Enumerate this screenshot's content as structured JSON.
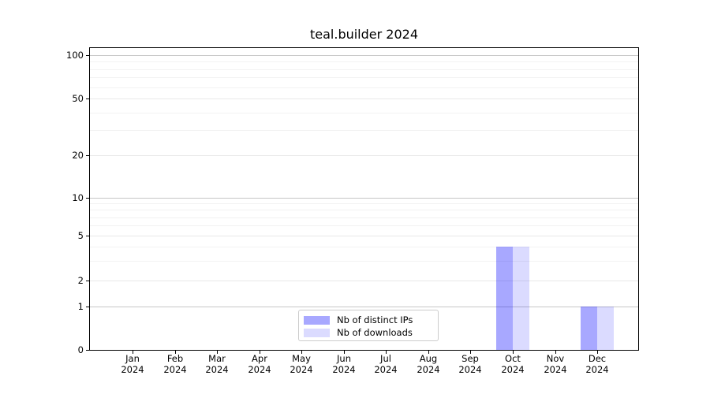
{
  "chart_data": {
    "type": "bar",
    "title": "teal.builder 2024",
    "categories": [
      "Jan",
      "Feb",
      "Mar",
      "Apr",
      "May",
      "Jun",
      "Jul",
      "Aug",
      "Sep",
      "Oct",
      "Nov",
      "Dec"
    ],
    "category_year": "2024",
    "series": [
      {
        "name": "Nb of distinct IPs",
        "color": "rgba(0,0,255,0.34)",
        "values": [
          0,
          0,
          0,
          0,
          0,
          0,
          0,
          0,
          0,
          4,
          0,
          1
        ]
      },
      {
        "name": "Nb of downloads",
        "color": "rgba(0,0,255,0.14)",
        "values": [
          0,
          0,
          0,
          0,
          0,
          0,
          0,
          0,
          0,
          4,
          0,
          1
        ]
      }
    ],
    "xlabel": "",
    "ylabel": "",
    "y_axis": {
      "scale": "symlog",
      "ticks": [
        0,
        1,
        2,
        5,
        10,
        20,
        50,
        100
      ],
      "minor_ticks": [
        3,
        4,
        6,
        7,
        8,
        9,
        30,
        40,
        60,
        70,
        80,
        90
      ],
      "ylim": [
        0,
        110
      ]
    },
    "grid": "on",
    "legend_position": "lower center",
    "colors": {
      "major_grid": "#c6c6c6",
      "labeled_minor_grid": "#e8e8e8",
      "minor_grid": "#f2f2f2",
      "spine": "#000000",
      "text": "#000000",
      "background": "#ffffff"
    }
  }
}
